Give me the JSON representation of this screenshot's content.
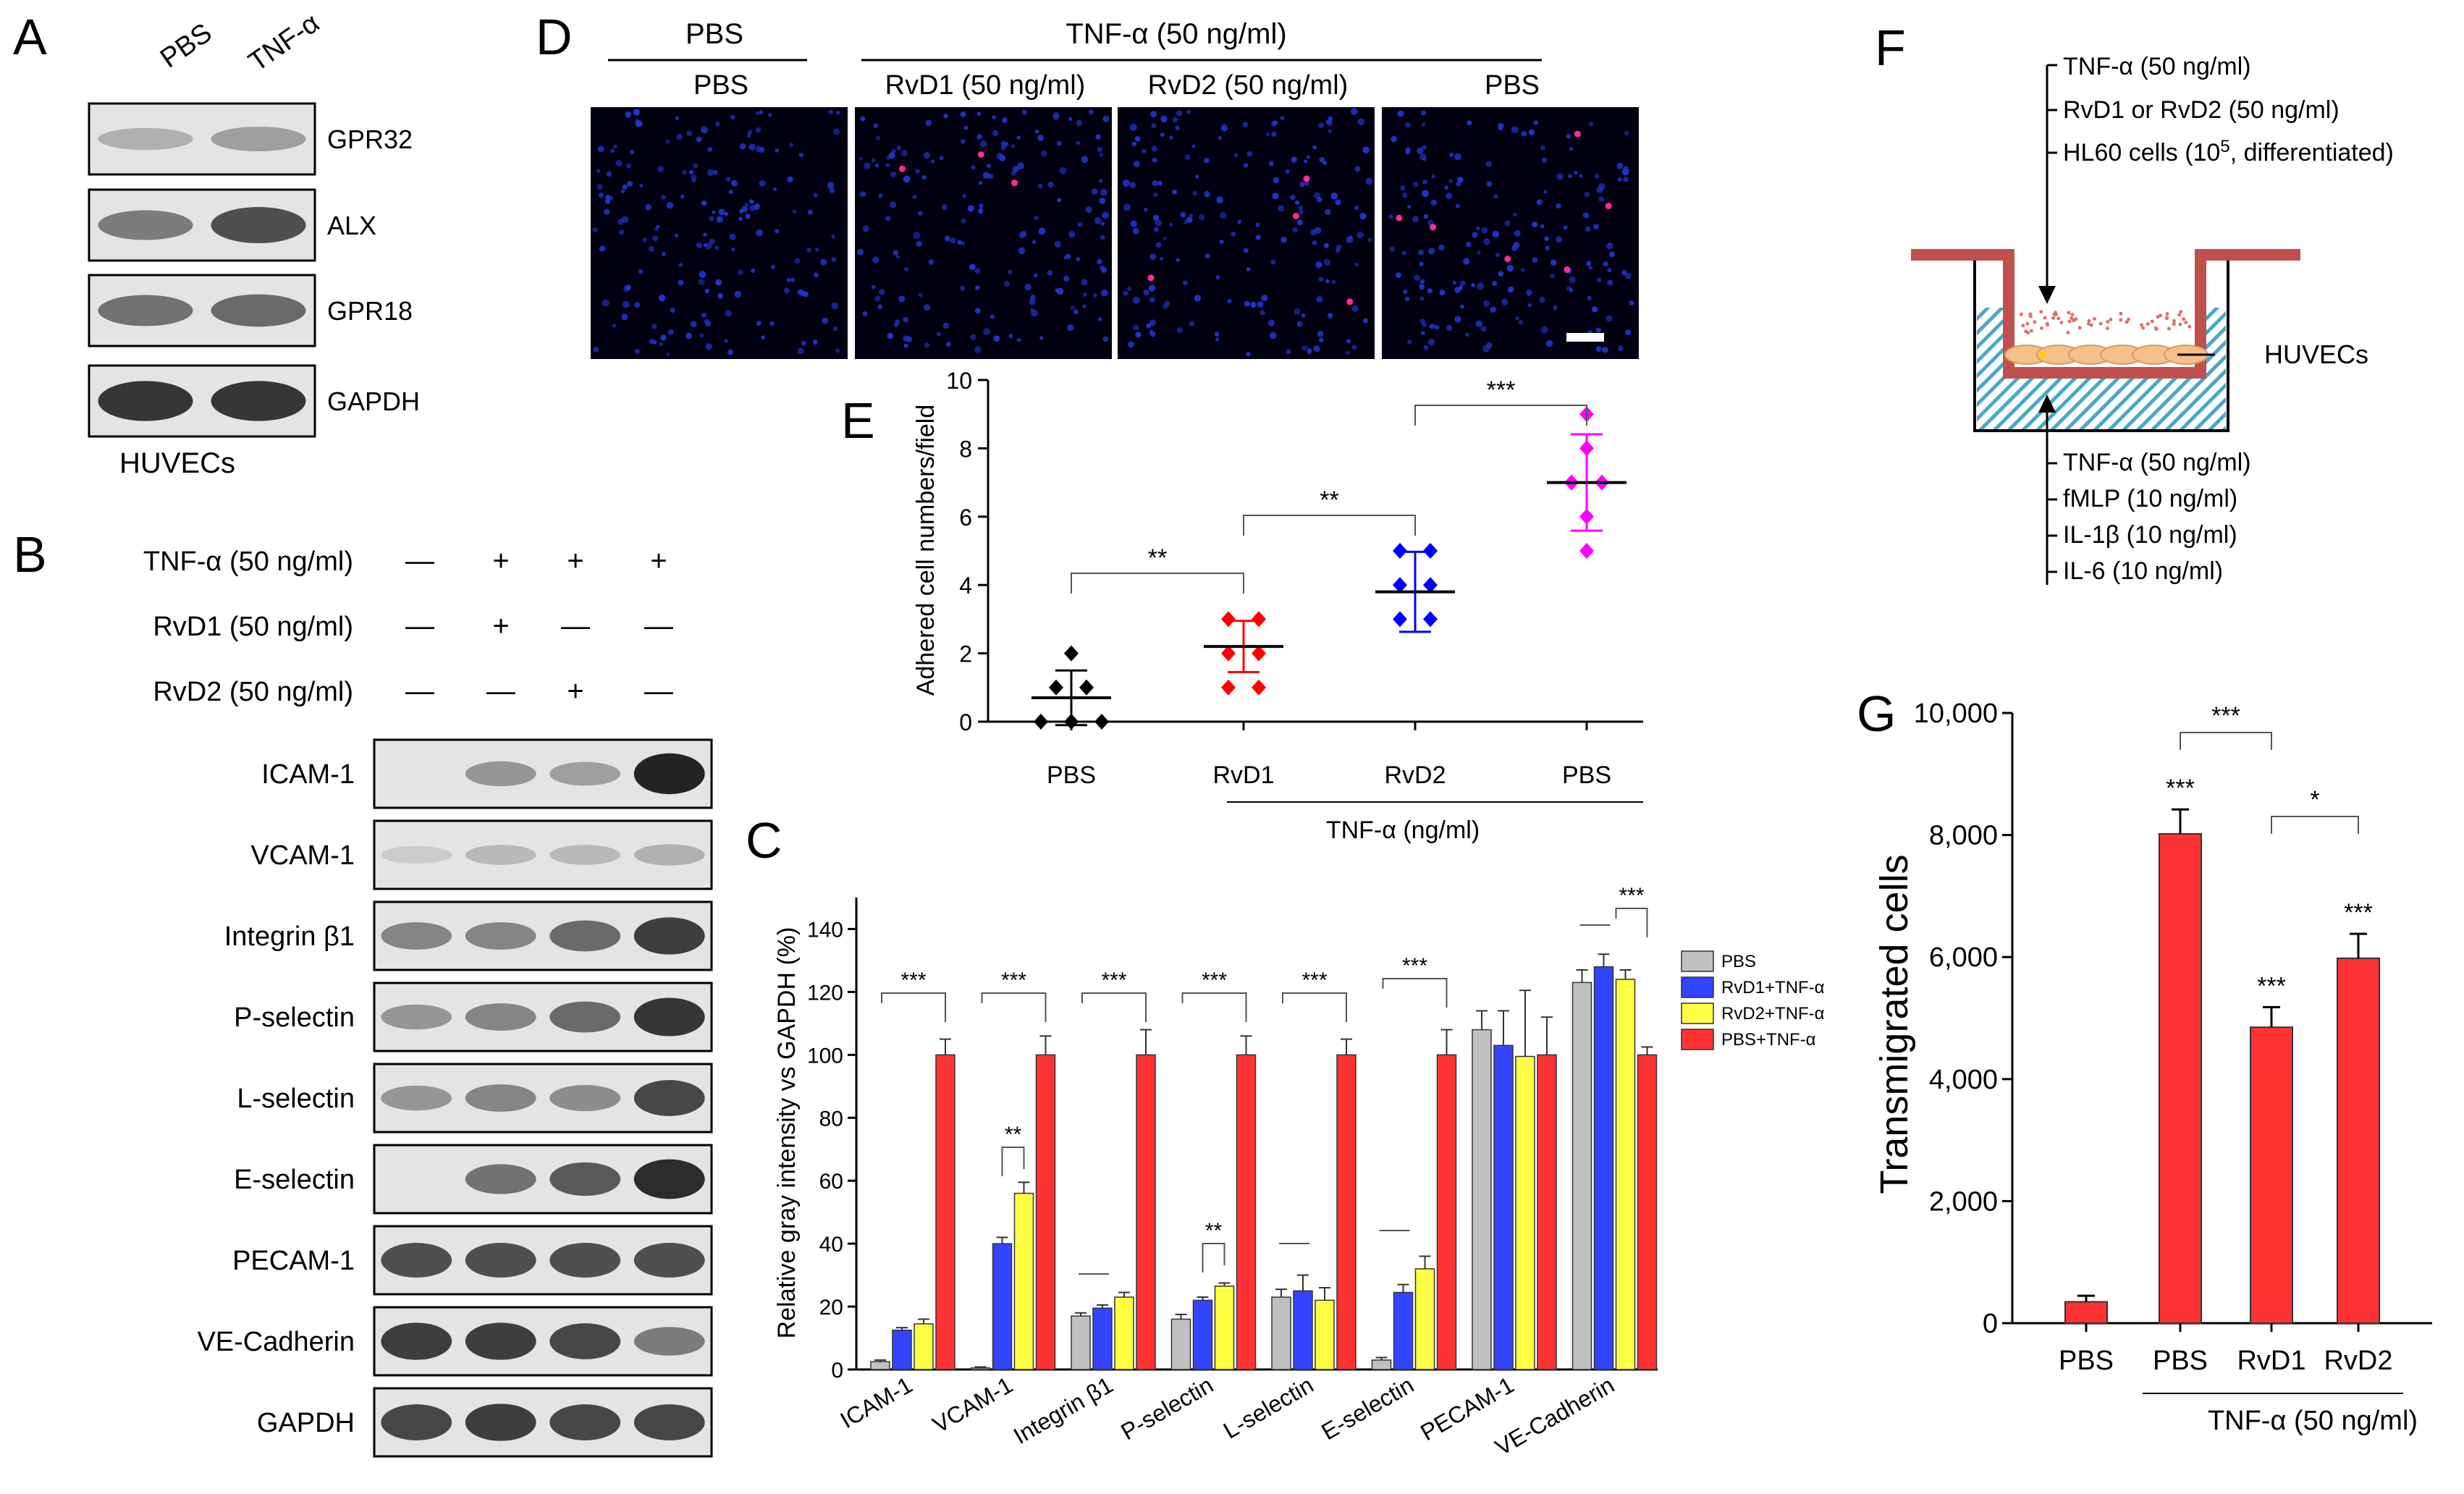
{
  "panels": {
    "A": {
      "letter": "A",
      "lanes": [
        "PBS",
        "TNF-α"
      ],
      "bands": [
        "GPR32",
        "ALX",
        "GPR18",
        "GAPDH"
      ],
      "cell_label": "HUVECs"
    },
    "B": {
      "letter": "B",
      "conditions": [
        {
          "label": "TNF-α (50 ng/ml)",
          "signs": [
            "—",
            "+",
            "+",
            "+"
          ]
        },
        {
          "label": "RvD1 (50 ng/ml)",
          "signs": [
            "—",
            "+",
            "—",
            "—"
          ]
        },
        {
          "label": "RvD2 (50 ng/ml)",
          "signs": [
            "—",
            "—",
            "+",
            "—"
          ]
        }
      ],
      "bands": [
        "ICAM-1",
        "VCAM-1",
        "Integrin β1",
        "P-selectin",
        "L-selectin",
        "E-selectin",
        "PECAM-1",
        "VE-Cadherin",
        "GAPDH"
      ]
    },
    "D": {
      "letter": "D",
      "group_left": "PBS",
      "group_right": "TNF-α (50 ng/ml)",
      "images": [
        "PBS",
        "RvD1 (50 ng/ml)",
        "RvD2 (50 ng/ml)",
        "PBS"
      ]
    },
    "F": {
      "letter": "F",
      "top_labels": [
        "TNF-α (50 ng/ml)",
        "RvD1 or RvD2 (50 ng/ml)"
      ],
      "hl60_pre": "HL60 cells (10",
      "hl60_sup": "5",
      "hl60_post": ", differentiated)",
      "side_label": "HUVECs",
      "bottom_labels": [
        "TNF-α (50 ng/ml)",
        "fMLP (10 ng/ml)",
        "IL-1β (10 ng/ml)",
        "IL-6 (10 ng/ml)"
      ]
    }
  },
  "charts": {
    "E": {
      "letter": "E",
      "group_label": "TNF-α (ng/ml)"
    },
    "C": {
      "letter": "C"
    },
    "G": {
      "letter": "G",
      "group_label": "TNF-α (50 ng/ml)"
    }
  },
  "chart_data": [
    {
      "id": "E",
      "type": "scatter",
      "title": "",
      "xlabel": "",
      "ylabel": "Adhered cell numbers/field",
      "categories": [
        "PBS",
        "RvD1",
        "RvD2",
        "PBS"
      ],
      "colors": [
        "#000000",
        "#ff0000",
        "#0000ff",
        "#ff00ff"
      ],
      "points": [
        [
          2,
          1,
          1,
          0,
          0,
          0
        ],
        [
          3,
          3,
          2,
          2,
          1,
          1
        ],
        [
          5,
          5,
          4,
          4,
          3,
          3
        ],
        [
          9,
          8,
          7,
          7,
          6,
          5
        ]
      ],
      "means": [
        0.7,
        2.2,
        3.8,
        7.0
      ],
      "sd": [
        0.8,
        0.75,
        1.17,
        1.41
      ],
      "ylim": [
        0,
        10
      ],
      "yticks": [
        0,
        2,
        4,
        6,
        8,
        10
      ],
      "significance": [
        {
          "from": 0,
          "to": 1,
          "label": "**"
        },
        {
          "from": 1,
          "to": 2,
          "label": "**"
        },
        {
          "from": 2,
          "to": 3,
          "label": "***"
        }
      ]
    },
    {
      "id": "C",
      "type": "bar",
      "ylabel": "Relative gray intensity vs GAPDH (%)",
      "categories": [
        "ICAM-1",
        "VCAM-1",
        "Integrin β1",
        "P-selectin",
        "L-selectin",
        "E-selectin",
        "PECAM-1",
        "VE-Cadherin"
      ],
      "series": [
        {
          "name": "PBS",
          "color": "#c0c0c0",
          "values": [
            2.5,
            0.5,
            17,
            16,
            23,
            3,
            108,
            123
          ],
          "err": [
            0.5,
            0.3,
            1,
            1.5,
            2.5,
            0.8,
            6,
            4
          ]
        },
        {
          "name": "RvD1+TNF-α",
          "color": "#3344ff",
          "values": [
            12.5,
            40,
            19.5,
            22,
            25,
            24.5,
            103,
            128
          ],
          "err": [
            0.8,
            2,
            1,
            1,
            5,
            2.5,
            11,
            4
          ]
        },
        {
          "name": "RvD2+TNF-α",
          "color": "#ffff44",
          "values": [
            14.5,
            56,
            23,
            26.5,
            22,
            32,
            99.5,
            124
          ],
          "err": [
            1.5,
            3.5,
            1.5,
            1,
            4,
            4,
            21,
            3
          ]
        },
        {
          "name": "PBS+TNF-α",
          "color": "#ff3333",
          "values": [
            100,
            100,
            100,
            100,
            100,
            100,
            100,
            100
          ],
          "err": [
            5,
            6,
            8,
            6,
            5,
            8,
            12,
            2.5
          ]
        }
      ],
      "ylim": [
        0,
        150
      ],
      "yticks": [
        0,
        20,
        40,
        60,
        80,
        100,
        120,
        140
      ],
      "significance": [
        {
          "cat": 0,
          "label": "***"
        },
        {
          "cat": 1,
          "label": "***"
        },
        {
          "cat": 1,
          "label": "**"
        },
        {
          "cat": 2,
          "label": "***"
        },
        {
          "cat": 3,
          "label": "***"
        },
        {
          "cat": 3,
          "label": "**"
        },
        {
          "cat": 4,
          "label": "***"
        },
        {
          "cat": 5,
          "label": "***"
        },
        {
          "cat": 7,
          "label": "***"
        }
      ],
      "legend": "top-right"
    },
    {
      "id": "G",
      "type": "bar",
      "ylabel": "Transmigrated cells",
      "categories": [
        "PBS",
        "PBS",
        "RvD1",
        "RvD2"
      ],
      "values": [
        350,
        8020,
        4850,
        5980
      ],
      "err": [
        100,
        400,
        330,
        400
      ],
      "color": "#ff3333",
      "ylim": [
        0,
        10000
      ],
      "yticks": [
        0,
        2000,
        4000,
        6000,
        8000,
        10000
      ],
      "ytick_labels": [
        "0",
        "2,000",
        "4,000",
        "6,000",
        "8,000",
        "10,000"
      ],
      "bar_stars": [
        "",
        "***",
        "***",
        "***"
      ],
      "significance": [
        {
          "from": 1,
          "to": 2,
          "label": "***"
        },
        {
          "from": 2,
          "to": 3,
          "label": "*"
        }
      ]
    }
  ]
}
